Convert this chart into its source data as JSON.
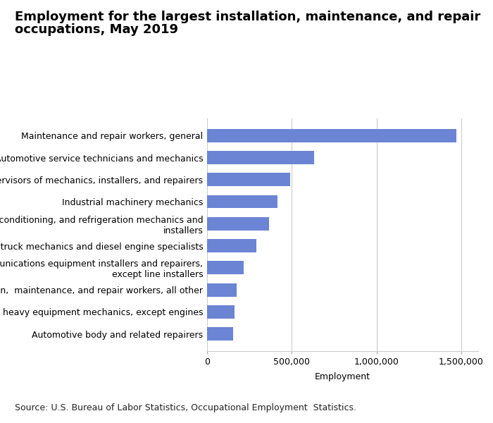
{
  "title_line1": "Employment for the largest installation, maintenance, and repair",
  "title_line2": "occupations, May 2019",
  "categories": [
    "Automotive body and related repairers",
    "Mobile heavy equipment mechanics, except engines",
    "Installation,  maintenance, and repair workers, all other",
    "Telecommunications equipment installers and repairers,\nexcept line installers",
    "Bus and truck mechanics and diesel engine specialists",
    "Heating, air conditioning, and refrigeration mechanics and\ninstallers",
    "Industrial machinery mechanics",
    "First-line supervisors of mechanics, installers, and repairers",
    "Automotive service technicians and mechanics",
    "Maintenance and repair workers, general"
  ],
  "values": [
    155000,
    160000,
    175000,
    215000,
    290000,
    365000,
    415000,
    490000,
    630000,
    1470000
  ],
  "bar_color": "#6b84d4",
  "xlabel": "Employment",
  "xlim": [
    0,
    1600000
  ],
  "xticks": [
    0,
    500000,
    1000000,
    1500000
  ],
  "xtick_labels": [
    "0",
    "500,000",
    "1,000,000",
    "1,500,000"
  ],
  "source_text": "Source: U.S. Bureau of Labor Statistics, Occupational Employment  Statistics.",
  "title_fontsize": 13,
  "label_fontsize": 9,
  "tick_fontsize": 9,
  "source_fontsize": 9,
  "background_color": "#ffffff",
  "grid_color": "#cccccc"
}
